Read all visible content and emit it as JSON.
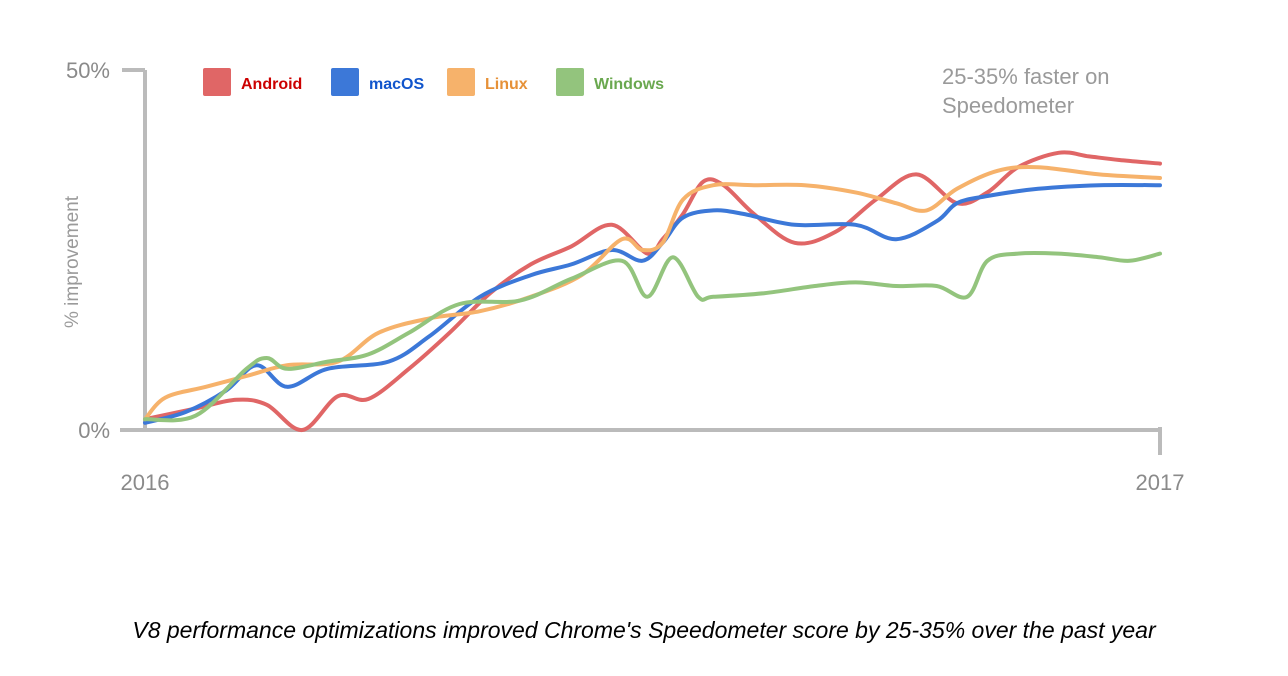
{
  "caption": "V8 performance optimizations improved Chrome's Speedometer score by 25-35% over the past year",
  "chart_data": {
    "type": "line",
    "title": "",
    "xlabel": "",
    "ylabel": "% improvement",
    "ylim": [
      0,
      50
    ],
    "xlim": [
      0,
      1
    ],
    "x_tick_labels": [
      "2016",
      "2017"
    ],
    "y_tick_labels": [
      "0%",
      "50%"
    ],
    "annotation": "25-35% faster on Speedometer",
    "legend_position": "top-left",
    "grid": false,
    "series": [
      {
        "name": "Android",
        "color": "#e06666",
        "text_color": "#cc0000",
        "x": [
          0,
          0.05,
          0.09,
          0.12,
          0.155,
          0.19,
          0.22,
          0.26,
          0.3,
          0.34,
          0.38,
          0.42,
          0.46,
          0.495,
          0.51,
          0.53,
          0.55,
          0.57,
          0.6,
          0.64,
          0.68,
          0.72,
          0.76,
          0.8,
          0.83,
          0.86,
          0.9,
          0.93,
          0.96,
          1.0
        ],
        "y": [
          1.5,
          3,
          4.2,
          3.5,
          0,
          4.7,
          4.3,
          8.5,
          13.5,
          19,
          23,
          25.5,
          28.5,
          24.5,
          26.5,
          30,
          34.5,
          34,
          30,
          26,
          27.5,
          32,
          35.5,
          31.5,
          33,
          36.5,
          38.5,
          38,
          37.5,
          37
        ]
      },
      {
        "name": "macOS",
        "color": "#3c78d8",
        "text_color": "#1155cc",
        "x": [
          0,
          0.04,
          0.08,
          0.11,
          0.14,
          0.18,
          0.24,
          0.28,
          0.33,
          0.38,
          0.42,
          0.46,
          0.49,
          0.51,
          0.53,
          0.56,
          0.59,
          0.64,
          0.7,
          0.74,
          0.78,
          0.8,
          0.83,
          0.88,
          0.94,
          1.0
        ],
        "y": [
          1,
          2.5,
          5.5,
          9,
          6,
          8.5,
          9.5,
          13,
          18.5,
          21.5,
          23,
          25,
          23.5,
          26,
          29.5,
          30.5,
          30,
          28.5,
          28.5,
          26.5,
          29,
          31.5,
          32.5,
          33.5,
          34,
          34
        ]
      },
      {
        "name": "Linux",
        "color": "#f6b26b",
        "text_color": "#e69138",
        "x": [
          0,
          0.02,
          0.06,
          0.1,
          0.14,
          0.19,
          0.23,
          0.28,
          0.33,
          0.38,
          0.43,
          0.47,
          0.49,
          0.51,
          0.53,
          0.56,
          0.6,
          0.65,
          0.7,
          0.74,
          0.77,
          0.8,
          0.84,
          0.88,
          0.94,
          1.0
        ],
        "y": [
          1.5,
          4.5,
          6,
          7.5,
          9,
          9.5,
          13.5,
          15.5,
          16.5,
          18.5,
          21.5,
          26.5,
          25,
          26,
          32,
          34,
          34,
          34,
          33,
          31.5,
          30.5,
          33.5,
          36,
          36.5,
          35.5,
          35
        ]
      },
      {
        "name": "Windows",
        "color": "#93c47d",
        "text_color": "#6aa84f",
        "x": [
          0,
          0.05,
          0.1,
          0.12,
          0.14,
          0.18,
          0.22,
          0.26,
          0.31,
          0.37,
          0.42,
          0.47,
          0.495,
          0.52,
          0.545,
          0.56,
          0.61,
          0.66,
          0.7,
          0.74,
          0.78,
          0.81,
          0.83,
          0.86,
          0.9,
          0.94,
          0.97,
          1.0
        ],
        "y": [
          1.5,
          2,
          8.5,
          10,
          8.5,
          9.5,
          10.5,
          13.5,
          17.5,
          18,
          21,
          23.5,
          18.5,
          24,
          18.5,
          18.5,
          19,
          20,
          20.5,
          20,
          20,
          18.5,
          23.5,
          24.5,
          24.5,
          24,
          23.5,
          24.5
        ]
      }
    ]
  }
}
